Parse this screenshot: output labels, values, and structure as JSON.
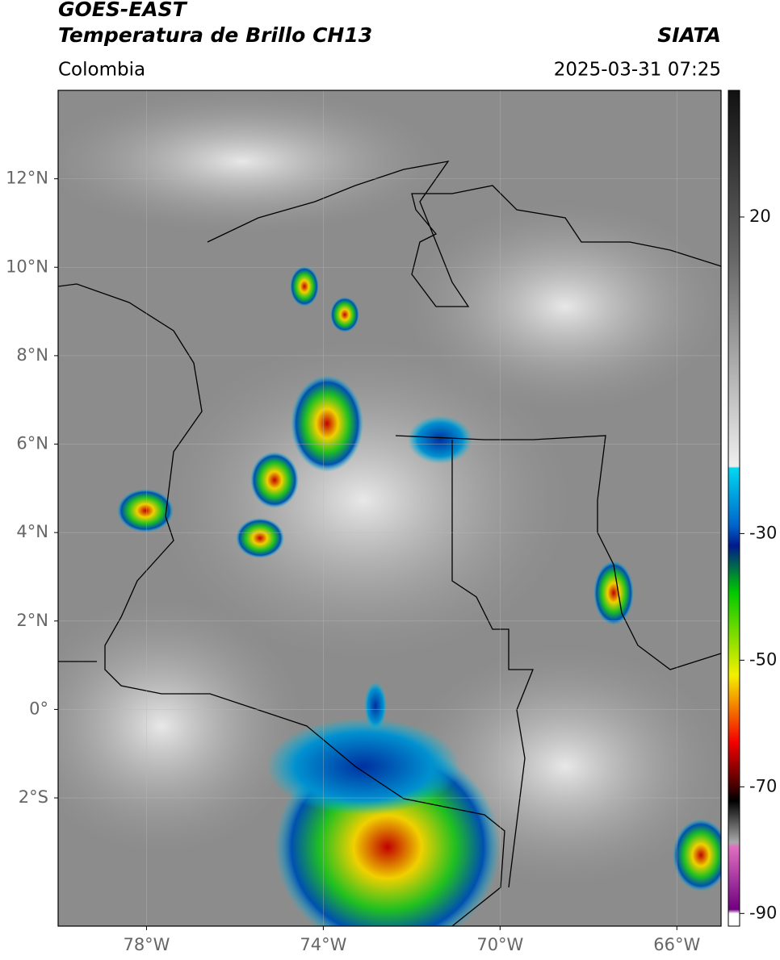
{
  "header": {
    "title_line1": "GOES-EAST",
    "title_line2": "Temperatura de Brillo CH13",
    "region": "Colombia",
    "source": "SIATA",
    "datetime": "2025-03-31 07:25"
  },
  "map": {
    "lon_lim": [
      -80,
      -65
    ],
    "lat_lim": [
      -4.9,
      14
    ],
    "lon_ticks": [
      {
        "value": -78,
        "label": "78°W"
      },
      {
        "value": -74,
        "label": "74°W"
      },
      {
        "value": -70,
        "label": "70°W"
      },
      {
        "value": -66,
        "label": "66°W"
      }
    ],
    "lat_ticks": [
      {
        "value": 12,
        "label": "12°N"
      },
      {
        "value": 10,
        "label": "10°N"
      },
      {
        "value": 8,
        "label": "8°N"
      },
      {
        "value": 6,
        "label": "6°N"
      },
      {
        "value": 4,
        "label": "4°N"
      },
      {
        "value": 2,
        "label": "2°N"
      },
      {
        "value": 0,
        "label": "0°"
      },
      {
        "value": -2,
        "label": "2°S"
      }
    ]
  },
  "colorbar": {
    "lim": [
      -92,
      40
    ],
    "ticks": [
      20,
      -30,
      -50,
      -70,
      -90
    ]
  }
}
